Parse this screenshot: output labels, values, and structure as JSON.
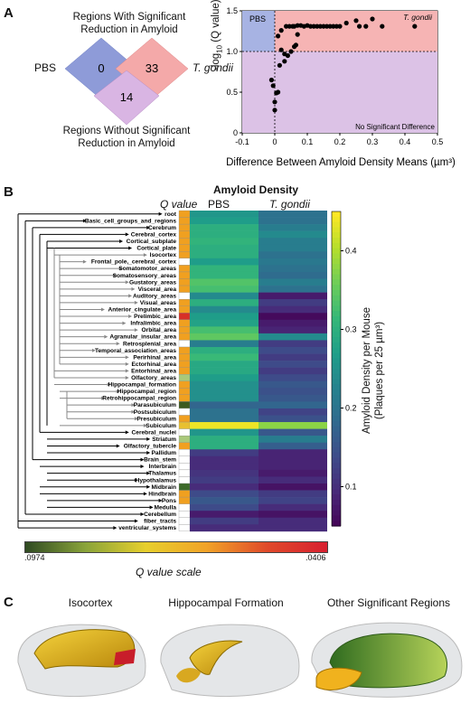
{
  "panel_a": {
    "letter": "A",
    "venn": {
      "top_title_line1": "Regions With Significant",
      "top_title_line2": "Reduction in Amyloid",
      "bottom_title_line1": "Regions Without Significant",
      "bottom_title_line2": "Reduction in Amyloid",
      "left_label": "PBS",
      "right_label": "T. gondii",
      "left_count": "0",
      "right_count": "33",
      "bottom_count": "14",
      "colors": {
        "left": "#8e9bd8",
        "right": "#f4a9a9",
        "bottom": "#d9b5e3"
      }
    }
  },
  "panel_b": {
    "letter": "B",
    "title": "Amyloid Density",
    "qvalue_header": "Q value",
    "col_pbs": "PBS",
    "col_tg": "T. gondii",
    "colorbar_label_line1": "Amyloid Density per Mouse",
    "colorbar_label_line2": "(Plaques per 25 µm³)",
    "colorbar_ticks": [
      "0.4",
      "0.3",
      "0.2",
      "0.1"
    ],
    "qscale_label": "Q value scale",
    "qscale_left": ".0974",
    "qscale_right": ".0406",
    "regions": [
      "root",
      "Basic_cell_groups_and_regions",
      "Cerebrum",
      "Cerebral_cortex",
      "Cortical_subplate",
      "Cortical_plate",
      "Isocortex",
      "Frontal_pole,_cerebral_cortex",
      "Somatomotor_areas",
      "Somatosensory_areas",
      "Gustatory_areas",
      "Visceral_area",
      "Auditory_areas",
      "Visual_areas",
      "Anterior_cingulate_area",
      "Prelimbic_area",
      "Infralimbic_area",
      "Orbital_area",
      "Agranular_insular_area",
      "Retrosplenial_area",
      "Temporal_association_areas",
      "Perirhinal_area",
      "Ectorhinal_area",
      "Entorhinal_area",
      "Olfactory_areas",
      "Hippocampal_formation",
      "Hippocampal_region",
      "Retrohippocampal_region",
      "Parasubiculum",
      "Postsubiculum",
      "Presubiculum",
      "Subiculum",
      "Cerebral_nuclei",
      "Striatum",
      "Olfactory_tubercle",
      "Pallidum",
      "Brain_stem",
      "Interbrain",
      "Thalamus",
      "Hypothalamus",
      "Midbrain",
      "Hindbrain",
      "Pons",
      "Medulla",
      "Cerebellum",
      "fiber_tracts",
      "ventricular_systems"
    ],
    "q_colors": [
      "#f0a020",
      "#f0a020",
      "#f0a020",
      "#f0a020",
      "#f0a020",
      "#f0a020",
      "#f0a020",
      "#ffffff",
      "#f0a020",
      "#f0a020",
      "#f0a020",
      "#f0a020",
      "#ffffff",
      "#f0a020",
      "#f0a020",
      "#d73027",
      "#f0a020",
      "#f0a020",
      "#f0a020",
      "#ffffff",
      "#f0a020",
      "#f0a020",
      "#f0a020",
      "#f0a020",
      "#a9c97a",
      "#f0a020",
      "#f0a020",
      "#f0a020",
      "#3d5a1e",
      "#ffffff",
      "#f0a020",
      "#e8c030",
      "#ffffff",
      "#a9c97a",
      "#f0a020",
      "#ffffff",
      "#ffffff",
      "#ffffff",
      "#ffffff",
      "#ffffff",
      "#3d6a2a",
      "#f0a020",
      "#f0a020",
      "#ffffff",
      "#ffffff",
      "#ffffff",
      "#ffffff"
    ],
    "pbs_values": [
      0.26,
      0.27,
      0.3,
      0.3,
      0.31,
      0.3,
      0.3,
      0.27,
      0.31,
      0.31,
      0.34,
      0.33,
      0.24,
      0.3,
      0.24,
      0.27,
      0.28,
      0.33,
      0.35,
      0.22,
      0.3,
      0.32,
      0.29,
      0.29,
      0.27,
      0.25,
      0.25,
      0.25,
      0.18,
      0.2,
      0.2,
      0.44,
      0.26,
      0.3,
      0.3,
      0.12,
      0.1,
      0.1,
      0.11,
      0.12,
      0.1,
      0.14,
      0.16,
      0.14,
      0.08,
      0.12,
      0.1
    ],
    "tg_values": [
      0.2,
      0.2,
      0.22,
      0.24,
      0.22,
      0.22,
      0.2,
      0.21,
      0.2,
      0.19,
      0.22,
      0.2,
      0.08,
      0.12,
      0.1,
      0.06,
      0.08,
      0.09,
      0.24,
      0.12,
      0.14,
      0.12,
      0.14,
      0.12,
      0.14,
      0.16,
      0.15,
      0.16,
      0.18,
      0.13,
      0.15,
      0.38,
      0.16,
      0.22,
      0.17,
      0.09,
      0.09,
      0.09,
      0.08,
      0.1,
      0.07,
      0.12,
      0.13,
      0.1,
      0.07,
      0.1,
      0.1
    ]
  },
  "panel_c": {
    "letter": "C",
    "labels": [
      "Isocortex",
      "Hippocampal Formation",
      "Other Significant Regions"
    ]
  },
  "chart_data": {
    "type": "scatter",
    "xlabel": "Difference Between Amyloid Density Means (µm³)",
    "ylabel": "-log10 (Q value)",
    "xlim": [
      -0.1,
      0.5
    ],
    "ylim": [
      0,
      1.5
    ],
    "xticks": [
      "-0.1",
      "0",
      "0.1",
      "0.2",
      "0.3",
      "0.4",
      "0.5"
    ],
    "yticks": [
      "0",
      "0.5",
      "1.0",
      "1.5"
    ],
    "region_labels": {
      "top_left": "PBS",
      "top_right": "T. gondii",
      "bottom_right": "No Significant Difference"
    },
    "region_colors": {
      "pbs": "#a7b3e3",
      "tgondii": "#f6b4b4",
      "nosig": "#dcc2e6"
    },
    "threshold_y": 1.0,
    "threshold_x": 0.0,
    "x": [
      -0.01,
      -0.005,
      0.0,
      0.0,
      0.005,
      0.01,
      0.015,
      0.02,
      0.01,
      0.03,
      0.03,
      0.04,
      0.05,
      0.06,
      0.065,
      0.07,
      0.02,
      0.035,
      0.045,
      0.055,
      0.06,
      0.07,
      0.08,
      0.09,
      0.1,
      0.11,
      0.12,
      0.13,
      0.14,
      0.15,
      0.16,
      0.17,
      0.18,
      0.19,
      0.2,
      0.22,
      0.25,
      0.26,
      0.28,
      0.3,
      0.33,
      0.43
    ],
    "y": [
      0.65,
      0.58,
      0.28,
      0.38,
      0.49,
      0.5,
      0.83,
      1.02,
      1.19,
      0.97,
      0.88,
      0.95,
      1.0,
      1.06,
      1.08,
      1.21,
      1.26,
      1.31,
      1.31,
      1.31,
      1.31,
      1.32,
      1.32,
      1.31,
      1.32,
      1.31,
      1.31,
      1.31,
      1.31,
      1.31,
      1.31,
      1.31,
      1.31,
      1.31,
      1.31,
      1.35,
      1.38,
      1.31,
      1.31,
      1.4,
      1.31,
      1.31
    ]
  }
}
